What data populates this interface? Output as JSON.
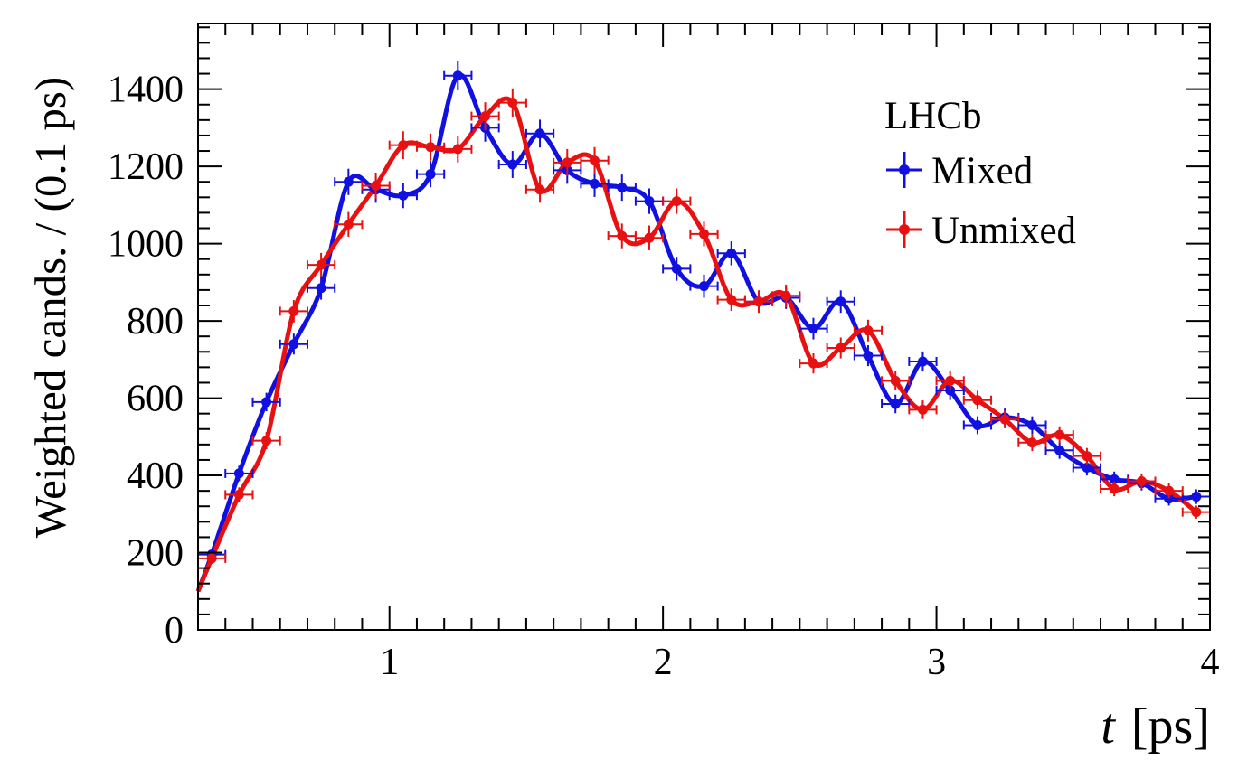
{
  "chart_data": {
    "type": "scatter",
    "title": "",
    "xlabel_symbol": "t",
    "xlabel_unit": "[ps]",
    "ylabel": "Weighted cands. / (0.1 ps)",
    "xlim": [
      0.3,
      4.0
    ],
    "ylim": [
      0,
      1570
    ],
    "x_ticks": [
      1,
      2,
      3,
      4
    ],
    "y_ticks": [
      0,
      200,
      400,
      600,
      800,
      1000,
      1200,
      1400
    ],
    "grid": false,
    "legend": {
      "placement": "top-right",
      "header": "LHCb",
      "entries": [
        "Mixed",
        "Unmixed"
      ]
    },
    "colors": {
      "Mixed": "#1010e0",
      "Unmixed": "#e81010"
    },
    "bin_width": 0.1,
    "series": [
      {
        "name": "Mixed",
        "x": [
          0.35,
          0.45,
          0.55,
          0.65,
          0.75,
          0.85,
          0.95,
          1.05,
          1.15,
          1.25,
          1.35,
          1.45,
          1.55,
          1.65,
          1.75,
          1.85,
          1.95,
          2.05,
          2.15,
          2.25,
          2.35,
          2.45,
          2.55,
          2.65,
          2.75,
          2.85,
          2.95,
          3.05,
          3.15,
          3.25,
          3.35,
          3.45,
          3.55,
          3.65,
          3.75,
          3.85,
          3.95
        ],
        "y": [
          195,
          405,
          590,
          740,
          885,
          1160,
          1140,
          1125,
          1180,
          1435,
          1300,
          1205,
          1285,
          1190,
          1155,
          1145,
          1110,
          935,
          890,
          975,
          850,
          860,
          780,
          850,
          710,
          585,
          695,
          620,
          530,
          550,
          530,
          465,
          420,
          390,
          380,
          340,
          345
        ],
        "errors": [
          14,
          20,
          24,
          27,
          30,
          34,
          34,
          33,
          34,
          38,
          36,
          35,
          36,
          35,
          34,
          34,
          33,
          31,
          30,
          31,
          29,
          29,
          28,
          29,
          27,
          24,
          26,
          25,
          23,
          23,
          23,
          22,
          20,
          20,
          19,
          18,
          19
        ]
      },
      {
        "name": "Unmixed",
        "x": [
          0.35,
          0.45,
          0.55,
          0.65,
          0.75,
          0.85,
          0.95,
          1.05,
          1.15,
          1.25,
          1.35,
          1.45,
          1.55,
          1.65,
          1.75,
          1.85,
          1.95,
          2.05,
          2.15,
          2.25,
          2.35,
          2.45,
          2.55,
          2.65,
          2.75,
          2.85,
          2.95,
          3.05,
          3.15,
          3.25,
          3.35,
          3.45,
          3.55,
          3.65,
          3.75,
          3.85,
          3.95
        ],
        "y": [
          185,
          350,
          490,
          825,
          945,
          1050,
          1150,
          1255,
          1250,
          1245,
          1330,
          1365,
          1140,
          1210,
          1215,
          1020,
          1015,
          1110,
          1025,
          855,
          850,
          865,
          690,
          730,
          775,
          645,
          570,
          645,
          595,
          545,
          485,
          505,
          450,
          365,
          385,
          360,
          305
        ],
        "errors": [
          14,
          19,
          22,
          29,
          31,
          32,
          34,
          36,
          35,
          35,
          36,
          37,
          34,
          35,
          35,
          32,
          32,
          33,
          32,
          29,
          29,
          29,
          26,
          27,
          28,
          25,
          24,
          25,
          24,
          23,
          22,
          22,
          21,
          19,
          20,
          19,
          17
        ]
      }
    ]
  }
}
